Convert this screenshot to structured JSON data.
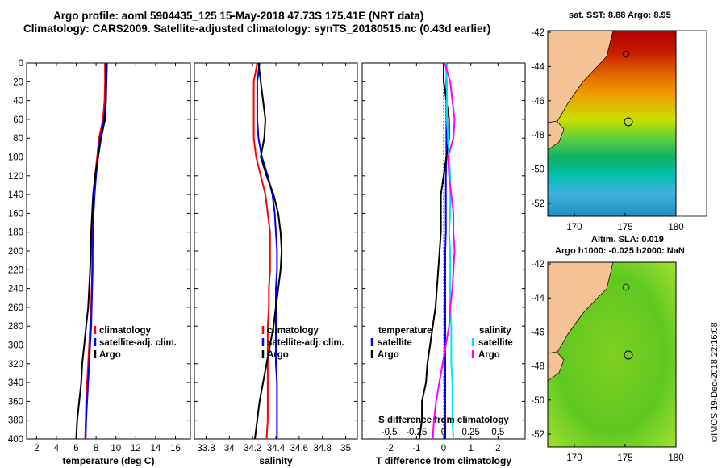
{
  "header": {
    "line1": "Argo profile: aoml 5904435_125 15-May-2018 47.73S 175.41E (NRT data)",
    "line2": "Climatology: CARS2009. Satellite-adjusted climatology: synTS_20180515.nc (0.43d earlier)"
  },
  "colors": {
    "red": "#ff0000",
    "blue": "#0000ff",
    "black": "#000000",
    "cyan": "#00e0ff",
    "magenta": "#ff00ff"
  },
  "chart_data": [
    {
      "type": "line",
      "id": "temperature",
      "xlabel": "temperature (deg C)",
      "ylabel": "",
      "xlim": [
        1,
        17.5
      ],
      "ylim": [
        0,
        400
      ],
      "xticks": [
        2,
        4,
        6,
        8,
        10,
        12,
        14,
        16
      ],
      "yticks": [
        0,
        20,
        40,
        60,
        80,
        100,
        120,
        140,
        160,
        180,
        200,
        220,
        240,
        260,
        280,
        300,
        320,
        340,
        360,
        380,
        400
      ],
      "legend": [
        "climatology",
        "satellite-adj. clim.",
        "Argo"
      ],
      "series": [
        {
          "name": "climatology",
          "color": "red",
          "depth": [
            0,
            20,
            40,
            60,
            80,
            100,
            120,
            140,
            160,
            180,
            200,
            220,
            240,
            260,
            280,
            300,
            320,
            340,
            360,
            380,
            400
          ],
          "values": [
            8.9,
            8.9,
            8.85,
            8.7,
            8.3,
            8.1,
            7.9,
            7.75,
            7.65,
            7.6,
            7.6,
            7.6,
            7.55,
            7.5,
            7.4,
            7.3,
            7.2,
            7.1,
            7.0,
            6.95,
            6.9
          ]
        },
        {
          "name": "satellite-adj. clim.",
          "color": "blue",
          "depth": [
            0,
            20,
            40,
            60,
            80,
            100,
            120,
            140,
            160,
            180,
            200,
            220,
            240,
            260,
            280,
            300,
            320,
            340,
            360,
            380,
            400
          ],
          "values": [
            9.1,
            9.05,
            9.0,
            8.8,
            8.4,
            8.2,
            8.0,
            7.85,
            7.75,
            7.7,
            7.65,
            7.65,
            7.6,
            7.55,
            7.5,
            7.4,
            7.3,
            7.2,
            7.1,
            7.0,
            6.95
          ]
        },
        {
          "name": "Argo",
          "color": "black",
          "depth": [
            0,
            20,
            40,
            60,
            80,
            100,
            120,
            140,
            160,
            180,
            200,
            220,
            240,
            260,
            280,
            300,
            320,
            340,
            360,
            380,
            400
          ],
          "values": [
            9.0,
            9.0,
            9.0,
            8.9,
            8.5,
            8.2,
            7.9,
            7.7,
            7.6,
            7.5,
            7.45,
            7.4,
            7.3,
            7.2,
            7.0,
            6.8,
            6.6,
            6.5,
            6.3,
            6.1,
            6.0
          ]
        }
      ]
    },
    {
      "type": "line",
      "id": "salinity",
      "xlabel": "salinity",
      "ylabel": "",
      "xlim": [
        33.7,
        35.1
      ],
      "ylim": [
        0,
        400
      ],
      "xticks": [
        33.8,
        34,
        34.2,
        34.4,
        34.6,
        34.8,
        35
      ],
      "yticks": [
        0,
        20,
        40,
        60,
        80,
        100,
        120,
        140,
        160,
        180,
        200,
        220,
        240,
        260,
        280,
        300,
        320,
        340,
        360,
        380,
        400
      ],
      "legend": [
        "climatology",
        "satellite-adj. clim.",
        "Argo"
      ],
      "series": [
        {
          "name": "climatology",
          "color": "red",
          "depth": [
            0,
            20,
            40,
            60,
            80,
            100,
            120,
            140,
            160,
            180,
            200,
            220,
            240,
            260,
            280,
            300,
            320,
            340,
            360,
            380,
            400
          ],
          "values": [
            34.24,
            34.21,
            34.21,
            34.21,
            34.21,
            34.23,
            34.27,
            34.31,
            34.33,
            34.35,
            34.35,
            34.35,
            34.34,
            34.34,
            34.33,
            34.33,
            34.33,
            34.33,
            34.33,
            34.33,
            34.32
          ]
        },
        {
          "name": "satellite-adj. clim.",
          "color": "blue",
          "depth": [
            0,
            20,
            40,
            60,
            80,
            100,
            120,
            140,
            160,
            180,
            200,
            220,
            240,
            260,
            280,
            300,
            320,
            340,
            360,
            380,
            400
          ],
          "values": [
            34.26,
            34.24,
            34.24,
            34.24,
            34.25,
            34.28,
            34.33,
            34.37,
            34.39,
            34.4,
            34.41,
            34.41,
            34.4,
            34.4,
            34.4,
            34.4,
            34.4,
            34.41,
            34.41,
            34.41,
            34.41
          ]
        },
        {
          "name": "Argo",
          "color": "black",
          "depth": [
            0,
            20,
            40,
            60,
            80,
            100,
            120,
            140,
            160,
            180,
            200,
            220,
            240,
            260,
            280,
            300,
            320,
            340,
            360,
            380,
            400
          ],
          "values": [
            34.25,
            34.27,
            34.29,
            34.31,
            34.3,
            34.27,
            34.32,
            34.38,
            34.42,
            34.44,
            34.45,
            34.44,
            34.42,
            34.4,
            34.38,
            34.35,
            34.32,
            34.29,
            34.26,
            34.24,
            34.22
          ]
        }
      ]
    },
    {
      "type": "line",
      "id": "difference",
      "xlabel": "T difference from climatology",
      "xlabel_top": "S difference from climatology",
      "xlim": [
        -3,
        3
      ],
      "ylim": [
        0,
        400
      ],
      "xticks": [
        -2,
        -1,
        0,
        1,
        2
      ],
      "xticks_top": [
        -0.5,
        -0.25,
        0,
        0.25,
        0.5
      ],
      "xticks_top_labels": [
        "-0.5",
        "-0.25",
        "0",
        "0.25",
        "0.5"
      ],
      "yticks": [
        0,
        20,
        40,
        60,
        80,
        100,
        120,
        140,
        160,
        180,
        200,
        220,
        240,
        260,
        280,
        300,
        320,
        340,
        360,
        380,
        400
      ],
      "legend_left_title": "temperature",
      "legend_right_title": "salinity",
      "legend_left": [
        "satellite",
        "Argo"
      ],
      "legend_right": [
        "satellite",
        "Argo"
      ],
      "series": [
        {
          "name": "temperature satellite",
          "color": "blue",
          "depth": [
            0,
            20,
            40,
            60,
            80,
            100,
            120,
            140,
            160,
            180,
            200,
            220,
            240,
            260,
            280,
            300,
            320,
            340,
            360,
            380,
            400
          ],
          "values": [
            0.1,
            0.1,
            0.1,
            0.1,
            0.1,
            0.1,
            0.08,
            0.08,
            0.08,
            0.08,
            0.06,
            0.06,
            0.06,
            0.06,
            0.06,
            0.06,
            0.06,
            0.06,
            0.06,
            0.06,
            0.06
          ]
        },
        {
          "name": "temperature Argo",
          "color": "black",
          "depth": [
            0,
            20,
            40,
            60,
            80,
            100,
            120,
            140,
            160,
            180,
            200,
            220,
            240,
            260,
            280,
            300,
            320,
            340,
            360,
            380,
            400
          ],
          "values": [
            0.0,
            0.0,
            0.1,
            0.2,
            0.2,
            0.1,
            0.0,
            -0.1,
            -0.1,
            -0.1,
            -0.15,
            -0.2,
            -0.25,
            -0.3,
            -0.4,
            -0.5,
            -0.6,
            -0.65,
            -0.8,
            -0.8,
            -0.9
          ]
        },
        {
          "name": "salinity satellite",
          "color": "cyan",
          "depth": [
            0,
            20,
            40,
            60,
            80,
            100,
            120,
            140,
            160,
            180,
            200,
            220,
            240,
            260,
            280,
            300,
            320,
            340,
            360,
            380,
            400
          ],
          "values": [
            0.02,
            0.03,
            0.03,
            0.03,
            0.04,
            0.05,
            0.06,
            0.06,
            0.06,
            0.05,
            0.06,
            0.06,
            0.06,
            0.06,
            0.07,
            0.07,
            0.07,
            0.08,
            0.08,
            0.08,
            0.09
          ]
        },
        {
          "name": "salinity Argo",
          "color": "magenta",
          "depth": [
            0,
            20,
            40,
            60,
            80,
            100,
            120,
            140,
            160,
            180,
            200,
            220,
            240,
            260,
            280,
            300,
            320,
            340,
            360,
            380,
            400
          ],
          "values": [
            0.01,
            0.06,
            0.08,
            0.1,
            0.09,
            0.04,
            0.05,
            0.07,
            0.09,
            0.09,
            0.1,
            0.09,
            0.08,
            0.06,
            0.05,
            0.02,
            -0.01,
            -0.04,
            -0.07,
            -0.09,
            -0.1
          ]
        }
      ]
    }
  ],
  "maps": {
    "sst": {
      "title": "sat. SST: 8.88 Argo: 8.95",
      "yticks": [
        -42,
        -44,
        -46,
        -48,
        -50,
        -52
      ],
      "xticks": [
        170,
        175,
        180
      ]
    },
    "sla": {
      "title_line1": "Altim. SLA: 0.019",
      "title_line2": "Argo h1000: -0.025 h2000: NaN",
      "yticks": [
        -42,
        -44,
        -46,
        -48,
        -50,
        -52
      ],
      "xticks": [
        170,
        175,
        180
      ]
    }
  },
  "credit": "©IMOS 19-Dec-2018 22:16:08"
}
